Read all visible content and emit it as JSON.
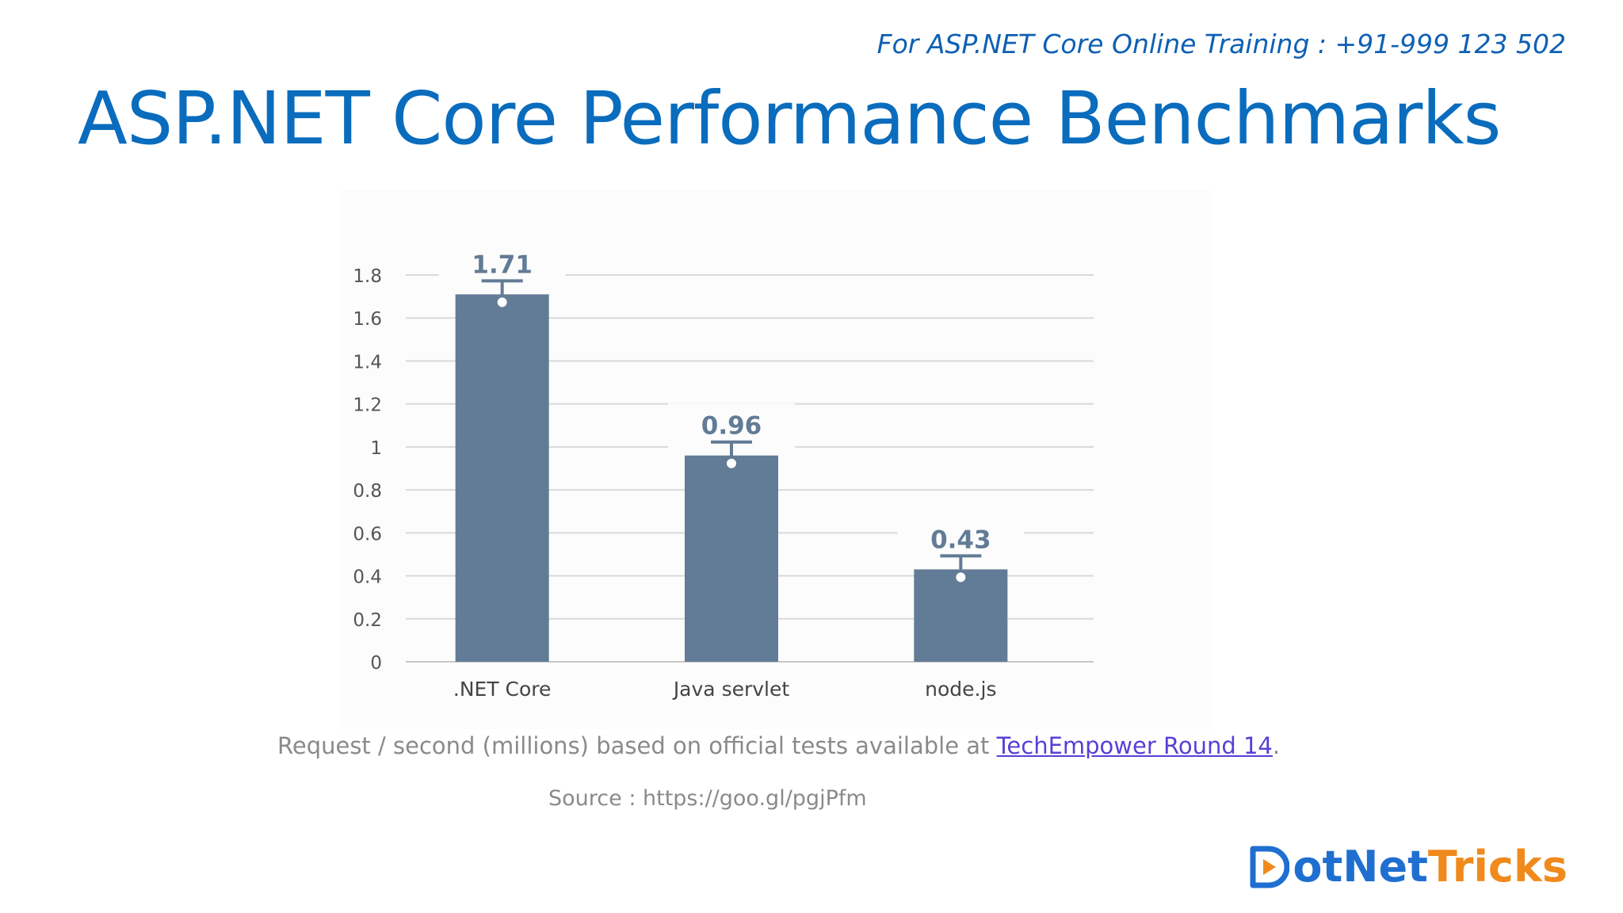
{
  "header": {
    "promo": "For ASP.NET Core Online Training : +91-999 123 502",
    "title": "ASP.NET Core Performance Benchmarks"
  },
  "caption": {
    "prefix": "Request / second (millions) based on official tests available at ",
    "link_text": "TechEmpower Round 14",
    "suffix": "."
  },
  "source": "Source : https://goo.gl/pgjPfm",
  "logo": {
    "part1": "otNet",
    "part2": "Tricks",
    "brand_blue": "#1f6fd1",
    "brand_orange": "#f08a1c"
  },
  "chart_data": {
    "type": "bar",
    "categories": [
      ".NET Core",
      "Java servlet",
      "node.js"
    ],
    "values": [
      1.71,
      0.96,
      0.43
    ],
    "data_labels": [
      "1.71",
      "0.96",
      "0.43"
    ],
    "title": "",
    "xlabel": "",
    "ylabel": "Request / second (millions)",
    "ylim": [
      0,
      1.8
    ],
    "yticks": [
      0,
      0.2,
      0.4,
      0.6,
      0.8,
      1,
      1.2,
      1.4,
      1.6,
      1.8
    ],
    "ytick_labels": [
      "0",
      "0.2",
      "0.4",
      "0.6",
      "0.8",
      "1",
      "1.2",
      "1.4",
      "1.6",
      "1.8"
    ],
    "grid": true,
    "bar_color": "#627b96",
    "label_color": "#627b96"
  }
}
